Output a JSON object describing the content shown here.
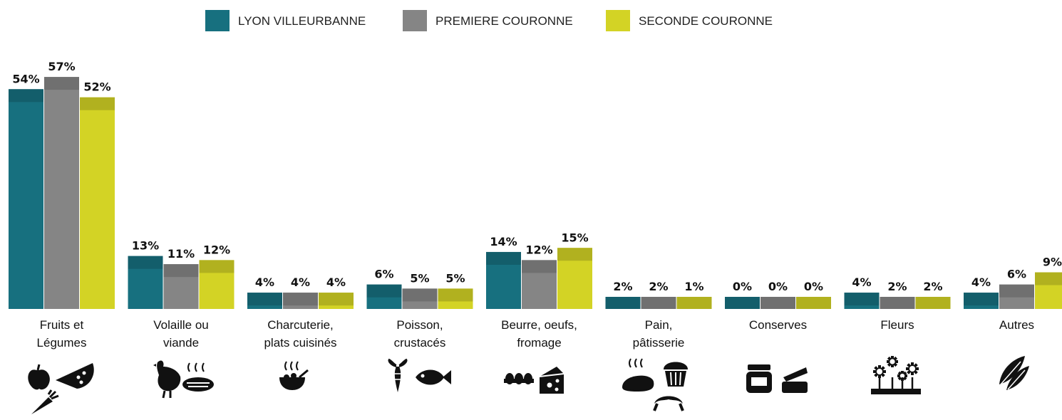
{
  "chart_data": {
    "type": "bar",
    "title": "",
    "xlabel": "",
    "ylabel": "",
    "ylim": [
      0,
      60
    ],
    "grid": false,
    "legend_position": "top",
    "categories": [
      [
        "Fruits et",
        "Légumes"
      ],
      [
        "Volaille ou",
        "viande"
      ],
      [
        "Charcuterie,",
        "plats cuisinés"
      ],
      [
        "Poisson,",
        "crustacés"
      ],
      [
        "Beurre, oeufs,",
        "fromage"
      ],
      [
        "Pain,",
        "pâtisserie"
      ],
      [
        "Conserves"
      ],
      [
        "Fleurs"
      ],
      [
        "Autres"
      ]
    ],
    "category_icons": [
      [
        "apple-icon",
        "watermelon-icon",
        "carrot-icon"
      ],
      [
        "chicken-icon",
        "steak-icon"
      ],
      [
        "hot-dish-icon"
      ],
      [
        "lobster-icon",
        "fish-icon"
      ],
      [
        "eggs-icon",
        "cheese-icon"
      ],
      [
        "bread-icon",
        "muffin-icon",
        "croissant-icon"
      ],
      [
        "jar-icon",
        "tin-can-icon"
      ],
      [
        "flower-box-icon"
      ],
      [
        "leaf-icon"
      ]
    ],
    "series": [
      {
        "name": "LYON VILLEURBANNE",
        "color": "#17707f",
        "values": [
          54,
          13,
          4,
          6,
          14,
          2,
          0,
          4,
          4
        ],
        "labels": [
          "54%",
          "13%",
          "4%",
          "6%",
          "14%",
          "2%",
          "0%",
          "4%",
          "4%"
        ]
      },
      {
        "name": "PREMIERE COURONNE",
        "color": "#858585",
        "values": [
          57,
          11,
          4,
          5,
          12,
          2,
          0,
          2,
          6
        ],
        "labels": [
          "57%",
          "11%",
          "4%",
          "5%",
          "12%",
          "2%",
          "0%",
          "2%",
          "6%"
        ]
      },
      {
        "name": "SECONDE COURONNE",
        "color": "#d3d325",
        "values": [
          52,
          12,
          4,
          5,
          15,
          1,
          0,
          2,
          9
        ],
        "labels": [
          "52%",
          "12%",
          "4%",
          "5%",
          "15%",
          "1%",
          "0%",
          "2%",
          "9%"
        ]
      }
    ]
  }
}
